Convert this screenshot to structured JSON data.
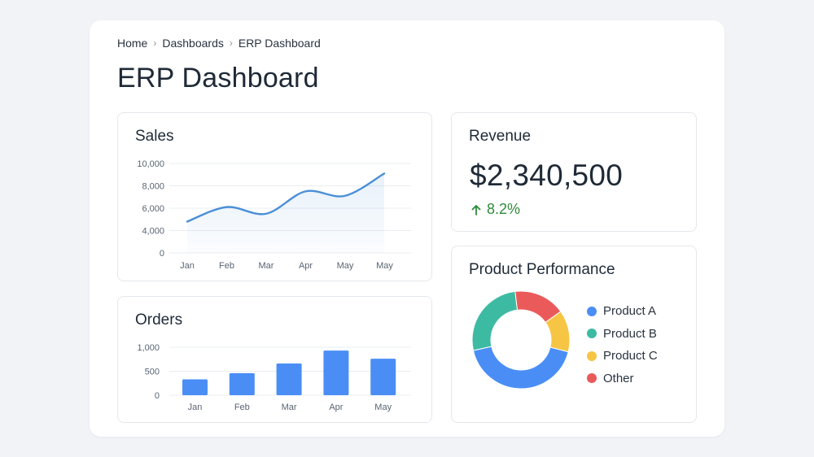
{
  "breadcrumb": {
    "items": [
      "Home",
      "Dashboards",
      "ERP Dashboard"
    ]
  },
  "page_title": "ERP Dashboard",
  "sales": {
    "title": "Sales",
    "chart_data": {
      "type": "area",
      "title": "Sales",
      "categories": [
        "Jan",
        "Feb",
        "Mar",
        "Apr",
        "May",
        "May"
      ],
      "values": [
        4800,
        6100,
        5500,
        7500,
        7100,
        9100
      ],
      "ylim": [
        0,
        10000
      ],
      "yticks": [
        "10,000",
        "8,000",
        "6,000",
        "4,000",
        "0"
      ],
      "grid": true,
      "color": "#4a8fd8"
    }
  },
  "orders": {
    "title": "Orders",
    "chart_data": {
      "type": "bar",
      "title": "Orders",
      "categories": [
        "Jan",
        "Feb",
        "Mar",
        "Apr",
        "May"
      ],
      "values": [
        330,
        460,
        660,
        930,
        760
      ],
      "ylim": [
        0,
        1000
      ],
      "yticks": [
        "1,000",
        "500",
        "0"
      ],
      "grid": true,
      "color": "#4a8ef5"
    }
  },
  "revenue": {
    "title": "Revenue",
    "value": "$2,340,500",
    "change": "8.2%",
    "change_direction": "up",
    "change_color": "#2e8b3a"
  },
  "product_performance": {
    "title": "Product Performance",
    "chart_data": {
      "type": "pie",
      "donut": true,
      "labels": [
        "Product A",
        "Product B",
        "Product C",
        "Other"
      ],
      "values": [
        40,
        25,
        13,
        16
      ],
      "colors": [
        "#4a8ef5",
        "#3dbba2",
        "#f6c543",
        "#ea5a5a"
      ],
      "legend": "right"
    }
  }
}
